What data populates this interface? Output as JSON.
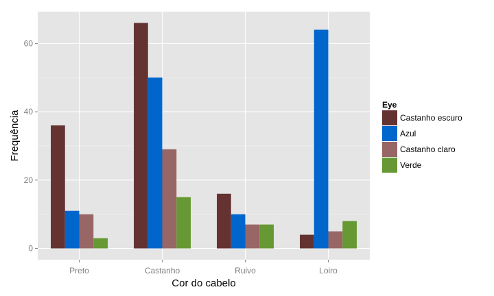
{
  "chart_data": {
    "type": "bar",
    "title": "",
    "xlabel": "Cor do cabelo",
    "ylabel": "Frequência",
    "categories": [
      "Preto",
      "Castanho",
      "Ruivo",
      "Loiro"
    ],
    "series": [
      {
        "name": "Castanho escuro",
        "color": "#653232",
        "values": [
          36,
          66,
          16,
          4
        ]
      },
      {
        "name": "Azul",
        "color": "#0066CC",
        "values": [
          11,
          50,
          10,
          64
        ]
      },
      {
        "name": "Castanho claro",
        "color": "#996666",
        "values": [
          10,
          29,
          7,
          5
        ]
      },
      {
        "name": "Verde",
        "color": "#669933",
        "values": [
          3,
          15,
          7,
          8
        ]
      }
    ],
    "yticks": [
      0,
      20,
      40,
      60
    ],
    "ylim": [
      -3.3,
      69.3
    ],
    "grid": true,
    "legend": {
      "title": "Eye",
      "placement": "right"
    }
  }
}
